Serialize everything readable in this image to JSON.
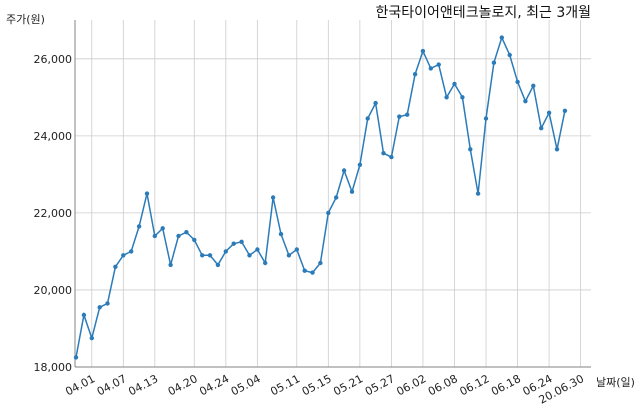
{
  "chart_data": {
    "type": "line",
    "title": "한국타이어앤테크놀로지, 최근 3개월",
    "ylabel": "주가(원)",
    "xlabel": "날짜(일)",
    "ylim": [
      18000,
      26800
    ],
    "yticks": [
      18000,
      20000,
      22000,
      24000,
      26000
    ],
    "ytick_labels": [
      "18,000",
      "20,000",
      "22,000",
      "24,000",
      "26,000"
    ],
    "grid": true,
    "color": "#2b7bb9",
    "xticks": [
      {
        "label": "04.01",
        "index": 2
      },
      {
        "label": "04.07",
        "index": 6
      },
      {
        "label": "04.13",
        "index": 10
      },
      {
        "label": "04.20",
        "index": 15
      },
      {
        "label": "04.24",
        "index": 19
      },
      {
        "label": "05.04",
        "index": 23
      },
      {
        "label": "05.11",
        "index": 28
      },
      {
        "label": "05.15",
        "index": 32
      },
      {
        "label": "05.21",
        "index": 36
      },
      {
        "label": "05.27",
        "index": 40
      },
      {
        "label": "06.02",
        "index": 44
      },
      {
        "label": "06.08",
        "index": 48
      },
      {
        "label": "06.12",
        "index": 52
      },
      {
        "label": "06.18",
        "index": 56
      },
      {
        "label": "06.24",
        "index": 60
      },
      {
        "label": "20.06.30",
        "index": 64
      }
    ],
    "values": [
      18250,
      19350,
      18750,
      19550,
      19650,
      20600,
      20900,
      21000,
      21650,
      22500,
      21400,
      21600,
      20650,
      21400,
      21500,
      21300,
      20900,
      20900,
      20650,
      21000,
      21200,
      21250,
      20900,
      21050,
      20700,
      22400,
      21450,
      20900,
      21050,
      20500,
      20450,
      20700,
      22000,
      22400,
      23100,
      22550,
      23250,
      24450,
      24850,
      23550,
      23450,
      24500,
      24550,
      25600,
      26200,
      25750,
      25850,
      25000,
      25350,
      25000,
      23650,
      22500,
      24450,
      25900,
      26550,
      26100,
      25400,
      24900,
      25300,
      24200,
      24600,
      23650,
      24650
    ]
  }
}
